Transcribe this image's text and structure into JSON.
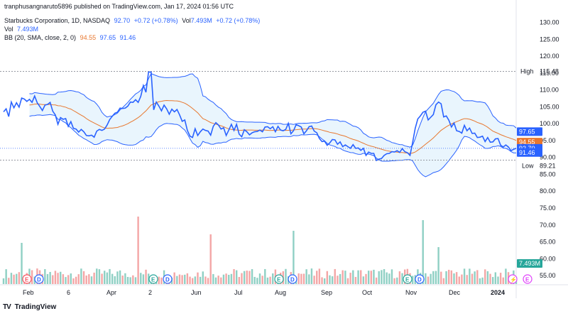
{
  "header": {
    "publish_line": "tranphusangnaruto5896 published on TradingView.com, Jan 17, 2024 01:56 UTC",
    "symbol": "Starbucks Corporation, 1D, NASDAQ",
    "price": "92.70",
    "change": "+0.72 (+0.78%)",
    "vol_label": "Vol",
    "vol_value": "7.493M",
    "vol_change": "+0.72 (+0.78%)",
    "vol_line_label": "Vol",
    "vol_line_value": "7.493M",
    "bb_label": "BB (20, SMA, close, 2, 0)",
    "bb_basis": "94.55",
    "bb_upper": "97.65",
    "bb_lower": "91.46"
  },
  "footer": {
    "brand": "TradingView",
    "logo": "TV"
  },
  "colors": {
    "price_line": "#2962ff",
    "bb_band": "#2962ff",
    "bb_fill": "#e3f2fd",
    "bb_basis": "#e8772e",
    "vol_up": "#8fd0c4",
    "vol_down": "#f4a6a6",
    "earnings_badge": "#f7525f",
    "dividend_badge": "#2962ff",
    "split_badge": "#26a69a"
  },
  "chart_data": {
    "type": "line",
    "title": "Starbucks Corporation, 1D, NASDAQ",
    "y_axis": {
      "ticks": [
        "130.00",
        "125.00",
        "120.00",
        "115.00",
        "110.00",
        "105.00",
        "100.00",
        "95.00",
        "90.00",
        "85.00",
        "80.00",
        "75.00",
        "70.00",
        "65.00",
        "60.00",
        "55.00"
      ],
      "range": [
        52.5,
        132
      ]
    },
    "x_axis": {
      "ticks": [
        "Feb",
        "6",
        "Apr",
        "2",
        "Jun",
        "Jul",
        "Aug",
        "Sep",
        "Oct",
        "Nov",
        "Dec",
        "2024"
      ]
    },
    "markers": {
      "high": {
        "label": "High",
        "value": "115.48"
      },
      "low": {
        "label": "Low",
        "value": "89.21"
      }
    },
    "price_labels": [
      {
        "role": "upper",
        "value": "97.65"
      },
      {
        "role": "basis",
        "value": "94.55"
      },
      {
        "role": "last",
        "value": "92.70"
      },
      {
        "role": "lower",
        "value": "91.46"
      },
      {
        "role": "volume",
        "value": "7.493M"
      }
    ],
    "series": [
      {
        "role": "close",
        "values": [
          103.5,
          104.4,
          102.1,
          106.4,
          104.7,
          106.2,
          104.9,
          107.6,
          107.3,
          106.6,
          107.2,
          106.3,
          108.2,
          106.2,
          105.1,
          103.9,
          105.5,
          105.7,
          106.3,
          103.7,
          102.6,
          99.8,
          101.8,
          101.3,
          101.5,
          99.2,
          100.6,
          98.6,
          98.4,
          97.5,
          98.3,
          97.6,
          96.5,
          96.4,
          96.6,
          96.0,
          97.8,
          98.3,
          98.0,
          98.4,
          99.6,
          101.2,
          102.2,
          103.1,
          103.4,
          104.6,
          104.5,
          104.6,
          105.2,
          106.4,
          106.3,
          107.1,
          106.3,
          108.1,
          111.3,
          109.3,
          115.3,
          115.3,
          104.1,
          106.4,
          105.2,
          103.8,
          105.5,
          104.4,
          102.8,
          104.3,
          103.5,
          104.2,
          102.6,
          100.7,
          101.1,
          98.0,
          96.3,
          95.9,
          98.5,
          96.5,
          97.6,
          98.4,
          98.0,
          97.8,
          96.6,
          99.2,
          100.3,
          99.6,
          98.4,
          98.8,
          96.5,
          98.1,
          99.8,
          98.0,
          99.8,
          96.9,
          96.1,
          98.2,
          97.6,
          96.7,
          97.3,
          97.6,
          97.7,
          98.1,
          97.6,
          99.0,
          99.1,
          98.5,
          99.1,
          97.6,
          99.2,
          98.1,
          97.9,
          98.3,
          100.1,
          97.0,
          97.9,
          99.7,
          99.4,
          99.0,
          97.0,
          97.9,
          99.1,
          99.3,
          97.8,
          97.3,
          95.6,
          94.7,
          94.8,
          93.6,
          94.3,
          95.3,
          95.2,
          93.9,
          94.6,
          93.2,
          93.7,
          93.2,
          92.7,
          93.8,
          92.7,
          92.8,
          92.1,
          92.7,
          90.6,
          91.6,
          91.2,
          91.2,
          89.1,
          89.5,
          89.7,
          90.6,
          91.1,
          91.2,
          91.7,
          91.6,
          92.0,
          91.5,
          92.6,
          91.7,
          91.4,
          90.6,
          94.4,
          98.6,
          101.4,
          102.3,
          103.4,
          103.7,
          101.1,
          101.9,
          102.7,
          105.6,
          106.4,
          105.9,
          102.0,
          102.3,
          101.0,
          99.0,
          100.2,
          97.9,
          97.7,
          97.2,
          99.5,
          97.9,
          98.7,
          97.1,
          97.2,
          95.9,
          96.0,
          96.3,
          94.7,
          95.9,
          94.5,
          94.6,
          95.5,
          95.6,
          93.6,
          93.1,
          93.7,
          93.1,
          92.0,
          92.4,
          92.7
        ]
      }
    ]
  }
}
